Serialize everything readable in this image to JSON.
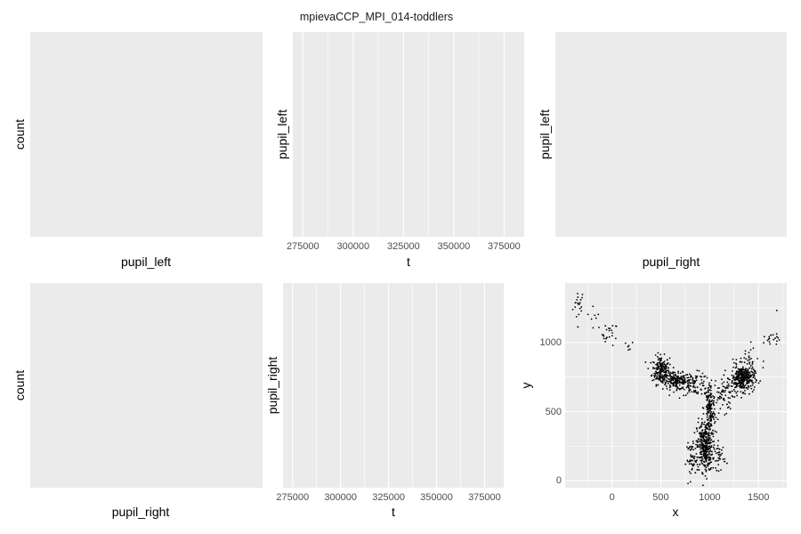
{
  "page": {
    "title": "mpievaCCP_MPI_014-toddlers"
  },
  "chart_data": [
    {
      "id": "hist-pupil-left",
      "type": "bar",
      "xlabel": "pupil_left",
      "ylabel": "count",
      "values": []
    },
    {
      "id": "line-pupil-left",
      "type": "line",
      "xlabel": "t",
      "ylabel": "pupil_left",
      "xlim": [
        270000,
        385000
      ],
      "xticks": [
        275000,
        300000,
        325000,
        350000,
        375000
      ],
      "xtick_labels": [
        "275000",
        "300000",
        "325000",
        "350000",
        "375000"
      ],
      "values": []
    },
    {
      "id": "scatter-pupil-right-left",
      "type": "scatter",
      "xlabel": "pupil_right",
      "ylabel": "pupil_left",
      "values": []
    },
    {
      "id": "hist-pupil-right",
      "type": "bar",
      "xlabel": "pupil_right",
      "ylabel": "count",
      "values": []
    },
    {
      "id": "line-pupil-right",
      "type": "line",
      "xlabel": "t",
      "ylabel": "pupil_right",
      "xlim": [
        270000,
        385000
      ],
      "xticks": [
        275000,
        300000,
        325000,
        350000,
        375000
      ],
      "xtick_labels": [
        "275000",
        "300000",
        "325000",
        "350000",
        "375000"
      ],
      "values": []
    },
    {
      "id": "scatter-gaze-xy",
      "type": "scatter",
      "xlabel": "x",
      "ylabel": "y",
      "xlim": [
        -480,
        1790
      ],
      "ylim": [
        -50,
        1430
      ],
      "xticks": [
        0,
        500,
        1000,
        1500
      ],
      "xtick_labels": [
        "0",
        "500",
        "1000",
        "1500"
      ],
      "yticks": [
        0,
        500,
        1000
      ],
      "ytick_labels": [
        "0",
        "500",
        "1000"
      ],
      "grid": true,
      "clusters": [
        {
          "cx": -340,
          "cy": 1270,
          "sx": 30,
          "sy": 60,
          "n": 20
        },
        {
          "cx": -180,
          "cy": 1180,
          "sx": 40,
          "sy": 40,
          "n": 8
        },
        {
          "cx": -20,
          "cy": 1060,
          "sx": 40,
          "sy": 40,
          "n": 22
        },
        {
          "cx": 180,
          "cy": 970,
          "sx": 20,
          "sy": 20,
          "n": 6
        },
        {
          "cx": 500,
          "cy": 800,
          "sx": 45,
          "sy": 50,
          "n": 200
        },
        {
          "cx": 660,
          "cy": 720,
          "sx": 70,
          "sy": 30,
          "n": 160
        },
        {
          "cx": 850,
          "cy": 700,
          "sx": 70,
          "sy": 40,
          "n": 90
        },
        {
          "cx": 1000,
          "cy": 520,
          "sx": 30,
          "sy": 100,
          "n": 170
        },
        {
          "cx": 950,
          "cy": 250,
          "sx": 40,
          "sy": 90,
          "n": 340
        },
        {
          "cx": 820,
          "cy": 150,
          "sx": 30,
          "sy": 60,
          "n": 50
        },
        {
          "cx": 1100,
          "cy": 180,
          "sx": 30,
          "sy": 50,
          "n": 40
        },
        {
          "cx": 1160,
          "cy": 620,
          "sx": 60,
          "sy": 60,
          "n": 70
        },
        {
          "cx": 1340,
          "cy": 740,
          "sx": 60,
          "sy": 45,
          "n": 320
        },
        {
          "cx": 1380,
          "cy": 880,
          "sx": 60,
          "sy": 60,
          "n": 30
        },
        {
          "cx": 1620,
          "cy": 1010,
          "sx": 50,
          "sy": 25,
          "n": 18
        },
        {
          "cx": 1690,
          "cy": 1230,
          "sx": 5,
          "sy": 5,
          "n": 1
        }
      ]
    }
  ]
}
